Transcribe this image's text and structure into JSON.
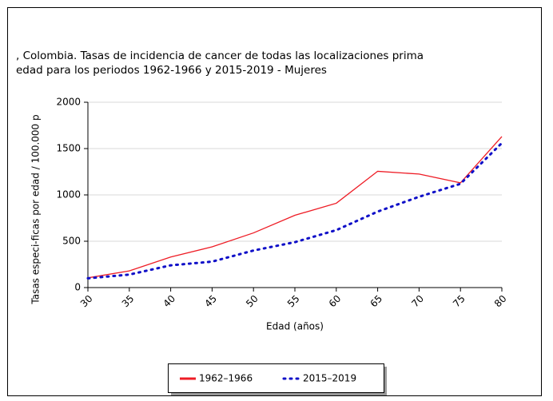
{
  "chart_data": {
    "type": "line",
    "title_lines": [
      ", Colombia. Tasas de incidencia de cancer de todas las localizaciones prima",
      "edad para los periodos 1962-1966 y 2015-2019 - Mujeres"
    ],
    "x_label": "Edad (años)",
    "y_label": "Tasas especi-ficas por edad / 100.000 p",
    "x": [
      30,
      35,
      40,
      45,
      50,
      55,
      60,
      65,
      70,
      75,
      80
    ],
    "series": [
      {
        "name": "1962–1966",
        "color": "#ee1c25",
        "style": "solid",
        "values": [
          105,
          180,
          330,
          440,
          590,
          780,
          910,
          1255,
          1225,
          1130,
          1630
        ]
      },
      {
        "name": "2015–2019",
        "color": "#1010c8",
        "style": "dotted",
        "values": [
          100,
          140,
          240,
          280,
          400,
          490,
          620,
          820,
          980,
          1120,
          1560
        ]
      }
    ],
    "xlim": [
      30,
      80
    ],
    "xticks": [
      30,
      35,
      40,
      45,
      50,
      55,
      60,
      65,
      70,
      75,
      80
    ],
    "ylim": [
      0,
      2000
    ],
    "yticks": [
      0,
      500,
      1000,
      1500,
      2000
    ],
    "grid": true,
    "legend": "bottom"
  }
}
